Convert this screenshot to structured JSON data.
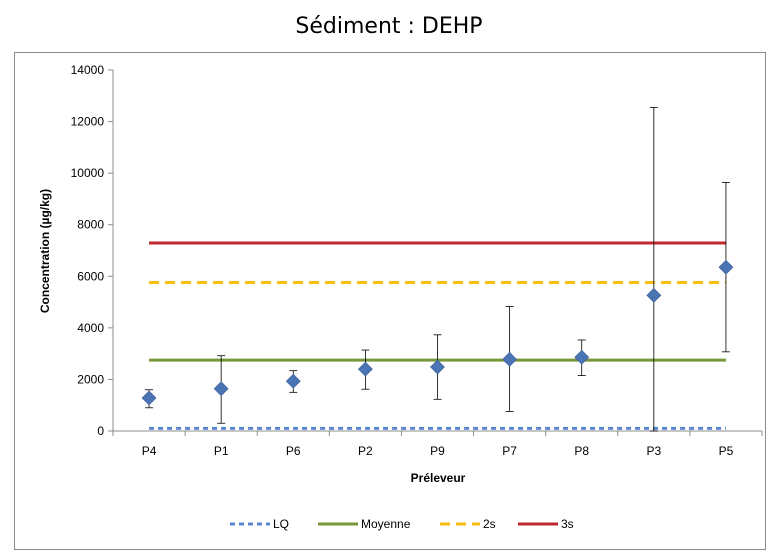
{
  "chart_data": {
    "type": "scatter",
    "title": "Sédiment : DEHP",
    "xlabel": "Préleveur",
    "ylabel": "Concentration  (µg/kg)",
    "ylim": [
      0,
      14000
    ],
    "yticks": [
      0,
      2000,
      4000,
      6000,
      8000,
      10000,
      12000,
      14000
    ],
    "categories": [
      "P4",
      "P1",
      "P6",
      "P2",
      "P9",
      "P7",
      "P8",
      "P3",
      "P5"
    ],
    "series": [
      {
        "values": [
          1280,
          1640,
          1930,
          2400,
          2480,
          2780,
          2860,
          5260,
          6350
        ],
        "error_low": [
          900,
          300,
          1500,
          1620,
          1230,
          760,
          2150,
          0,
          3070
        ],
        "error_high": [
          1600,
          2920,
          2340,
          3140,
          3730,
          4830,
          3530,
          12550,
          9640
        ],
        "color": "#4a74b4",
        "marker": "diamond"
      }
    ],
    "reference_lines": [
      {
        "name": "LQ",
        "value": 100,
        "color": "#5b87d2",
        "style": "dashed"
      },
      {
        "name": "Moyenne",
        "value": 2750,
        "color": "#77973a",
        "style": "solid"
      },
      {
        "name": "2s",
        "value": 5760,
        "color": "#f9bd10",
        "style": "dashed"
      },
      {
        "name": "3s",
        "value": 7290,
        "color": "#c0282d",
        "style": "solid"
      }
    ],
    "legend_position": "bottom",
    "grid": false
  }
}
